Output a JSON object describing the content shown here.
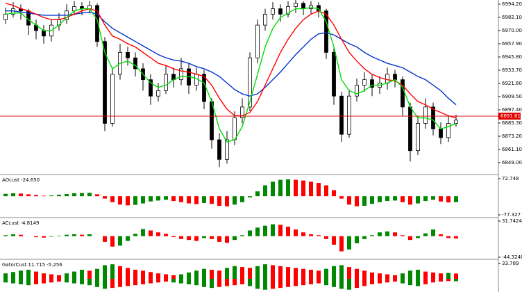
{
  "chart_data": [
    {
      "type": "candlestick",
      "ylim": [
        6838.8,
        6998
      ],
      "yticks": [
        {
          "value": 6994.2,
          "label": "6994.20"
        },
        {
          "value": 6982.1,
          "label": "6982.10"
        },
        {
          "value": 6970,
          "label": "6970.00"
        },
        {
          "value": 6957.9,
          "label": "6957.90"
        },
        {
          "value": 6945.8,
          "label": "6945.80"
        },
        {
          "value": 6933.7,
          "label": "6933.70"
        },
        {
          "value": 6921.6,
          "label": "6921.60"
        },
        {
          "value": 6909.5,
          "label": "6909.50"
        },
        {
          "value": 6897.4,
          "label": "6897.40"
        },
        {
          "value": 6885.3,
          "label": "6885.30"
        },
        {
          "value": 6873.2,
          "label": "6873.20"
        },
        {
          "value": 6861.1,
          "label": "6861.10"
        },
        {
          "value": 6849,
          "label": "6849.00"
        }
      ],
      "price_line": {
        "value": 6891.61,
        "label": "6891.61",
        "color": "#e00000"
      },
      "up_color": "#ffffff",
      "down_color": "#000000",
      "open": [
        6980,
        6985,
        6990,
        6988,
        6975,
        6970,
        6965,
        6975,
        6980,
        6988,
        6992,
        6990,
        6993,
        6960,
        6885,
        6930,
        6950,
        6945,
        6935,
        6925,
        6910,
        6915,
        6930,
        6925,
        6935,
        6920,
        6930,
        6905,
        6870,
        6852,
        6870,
        6890,
        6900,
        6945,
        6975,
        6985,
        6990,
        6985,
        6992,
        6995,
        6990,
        6993,
        6988,
        6950,
        6910,
        6875,
        6910,
        6920,
        6925,
        6918,
        6922,
        6930,
        6925,
        6900,
        6860,
        6885,
        6900,
        6880,
        6872,
        6885
      ],
      "high": [
        6991,
        6996,
        6994,
        6990,
        6980,
        6975,
        6980,
        6986,
        6994,
        6997,
        6996,
        6997,
        6995,
        6964,
        6936,
        6958,
        6955,
        6950,
        6940,
        6930,
        6922,
        6938,
        6936,
        6945,
        6940,
        6936,
        6934,
        6908,
        6876,
        6878,
        6896,
        6908,
        6950,
        6980,
        6990,
        6996,
        6994,
        6997,
        6998,
        6997,
        6997,
        6996,
        6990,
        6955,
        6914,
        6916,
        6926,
        6932,
        6930,
        6928,
        6936,
        6934,
        6928,
        6904,
        6892,
        6908,
        6904,
        6886,
        6892,
        6893
      ],
      "low": [
        6976,
        6982,
        6980,
        6966,
        6962,
        6958,
        6960,
        6970,
        6976,
        6984,
        6984,
        6986,
        6955,
        6878,
        6882,
        6925,
        6938,
        6928,
        6915,
        6902,
        6905,
        6912,
        6918,
        6920,
        6912,
        6915,
        6898,
        6862,
        6845,
        6848,
        6865,
        6885,
        6896,
        6940,
        6970,
        6980,
        6978,
        6982,
        6986,
        6984,
        6985,
        6982,
        6944,
        6902,
        6868,
        6872,
        6905,
        6914,
        6910,
        6912,
        6916,
        6918,
        6892,
        6850,
        6856,
        6880,
        6874,
        6866,
        6868,
        6882
      ],
      "close": [
        6985,
        6990,
        6988,
        6975,
        6970,
        6965,
        6975,
        6980,
        6988,
        6992,
        6990,
        6993,
        6960,
        6885,
        6930,
        6950,
        6945,
        6935,
        6925,
        6910,
        6915,
        6930,
        6925,
        6935,
        6920,
        6930,
        6905,
        6870,
        6852,
        6870,
        6890,
        6900,
        6945,
        6975,
        6985,
        6990,
        6985,
        6992,
        6995,
        6990,
        6993,
        6988,
        6950,
        6910,
        6875,
        6910,
        6920,
        6925,
        6918,
        6922,
        6930,
        6925,
        6900,
        6860,
        6885,
        6900,
        6880,
        6872,
        6885,
        6888
      ],
      "series": [
        {
          "color": "#0033cc",
          "values": [
            6988,
            6988,
            6987,
            6986,
            6985,
            6984,
            6984,
            6984,
            6984,
            6985,
            6986,
            6987,
            6985,
            6978,
            6972,
            6968,
            6964,
            6960,
            6956,
            6952,
            6948,
            6945,
            6943,
            6942,
            6940,
            6937,
            6935,
            6932,
            6928,
            6922,
            6916,
            6912,
            6910,
            6912,
            6918,
            6925,
            6932,
            6940,
            6948,
            6955,
            6962,
            6967,
            6968,
            6966,
            6962,
            6958,
            6955,
            6950,
            6946,
            6943,
            6940,
            6938,
            6936,
            6932,
            6928,
            6925,
            6920,
            6915,
            6908,
            6902
          ]
        },
        {
          "color": "#ff0000",
          "values": [
            6995,
            6993,
            6990,
            6988,
            6985,
            6982,
            6980,
            6980,
            6982,
            6985,
            6988,
            6990,
            6988,
            6975,
            6965,
            6962,
            6958,
            6955,
            6950,
            6945,
            6940,
            6938,
            6935,
            6933,
            6932,
            6930,
            6928,
            6920,
            6908,
            6898,
            6892,
            6892,
            6895,
            6905,
            6920,
            6935,
            6950,
            6962,
            6972,
            6980,
            6985,
            6988,
            6985,
            6975,
            6962,
            6950,
            6942,
            6935,
            6930,
            6927,
            6925,
            6924,
            6920,
            6912,
            6905,
            6902,
            6898,
            6895,
            6892,
            6890
          ]
        },
        {
          "color": "#00dd00",
          "values": [
            6985,
            6986,
            6986,
            6980,
            6975,
            6970,
            6970,
            6975,
            6982,
            6988,
            6990,
            6990,
            6980,
            6950,
            6935,
            6940,
            6942,
            6938,
            6930,
            6922,
            6918,
            6920,
            6925,
            6928,
            6928,
            6926,
            6922,
            6905,
            6880,
            6868,
            6870,
            6882,
            6905,
            6930,
            6955,
            6972,
            6982,
            6986,
            6990,
            6990,
            6991,
            6990,
            6978,
            6955,
            6925,
            6915,
            6912,
            6915,
            6920,
            6920,
            6922,
            6925,
            6918,
            6900,
            6890,
            6890,
            6888,
            6880,
            6882,
            6885
          ]
        }
      ]
    },
    {
      "type": "bar",
      "title": "AOcust -24.650",
      "ylim": [
        -86,
        87
      ],
      "yticks": [
        72.748,
        -77.327
      ],
      "up_color": "#008800",
      "down_color": "#ff0000",
      "values": [
        10,
        12,
        11,
        8,
        5,
        2,
        3,
        6,
        9,
        12,
        13,
        14,
        8,
        -10,
        -25,
        -35,
        -38,
        -36,
        -30,
        -22,
        -18,
        -15,
        -20,
        -25,
        -30,
        -33,
        -28,
        -32,
        -40,
        -42,
        -35,
        -25,
        -5,
        20,
        45,
        60,
        68,
        70,
        68,
        65,
        60,
        55,
        45,
        25,
        -10,
        -35,
        -42,
        -40,
        -32,
        -25,
        -20,
        -18,
        -25,
        -35,
        -30,
        -20,
        -15,
        -22,
        -26,
        -24.65
      ]
    },
    {
      "type": "bar",
      "title": "ACcust -4.8149",
      "ylim": [
        -47.3,
        37.6
      ],
      "yticks": [
        31.7424,
        -44.3248
      ],
      "up_color": "#008800",
      "down_color": "#ff0000",
      "values": [
        2,
        4,
        3,
        0,
        -2,
        -3,
        -1,
        1,
        3,
        4,
        3,
        4,
        0,
        -12,
        -22,
        -20,
        -10,
        5,
        15,
        12,
        8,
        5,
        -2,
        -6,
        -8,
        -10,
        -4,
        -6,
        -12,
        -14,
        -8,
        2,
        12,
        18,
        22,
        25,
        24,
        20,
        14,
        8,
        4,
        2,
        -6,
        -18,
        -32,
        -28,
        -15,
        -6,
        2,
        8,
        10,
        8,
        2,
        -8,
        -4,
        6,
        14,
        4,
        -4,
        -4.8149
      ]
    },
    {
      "type": "bar",
      "title": "GatorCust 11.715 -5.256",
      "ylim": [
        -29,
        41.4
      ],
      "yticks": [
        33.789
      ],
      "up_color": "#008800",
      "down_color": "#ff0000",
      "series": [
        {
          "values": [
            12,
            15,
            18,
            20,
            16,
            12,
            10,
            8,
            12,
            16,
            20,
            18,
            22,
            30,
            32,
            28,
            24,
            20,
            18,
            15,
            12,
            10,
            8,
            10,
            14,
            18,
            22,
            20,
            18,
            24,
            28,
            26,
            24,
            28,
            32,
            30,
            28,
            26,
            24,
            22,
            20,
            18,
            22,
            28,
            30,
            26,
            22,
            18,
            14,
            12,
            10,
            8,
            12,
            18,
            20,
            16,
            14,
            12,
            13,
            11.715
          ]
        },
        {
          "values": [
            -8,
            -10,
            -12,
            -14,
            -12,
            -10,
            -8,
            -6,
            -8,
            -10,
            -12,
            -14,
            -18,
            -22,
            -20,
            -18,
            -16,
            -14,
            -12,
            -10,
            -8,
            -6,
            -8,
            -10,
            -12,
            -14,
            -18,
            -20,
            -18,
            -16,
            -14,
            -12,
            -16,
            -22,
            -24,
            -22,
            -20,
            -18,
            -16,
            -14,
            -12,
            -10,
            -14,
            -18,
            -22,
            -24,
            -20,
            -16,
            -12,
            -10,
            -8,
            -6,
            -10,
            -14,
            -16,
            -12,
            -8,
            -6,
            -5,
            -5.256
          ]
        }
      ]
    }
  ]
}
